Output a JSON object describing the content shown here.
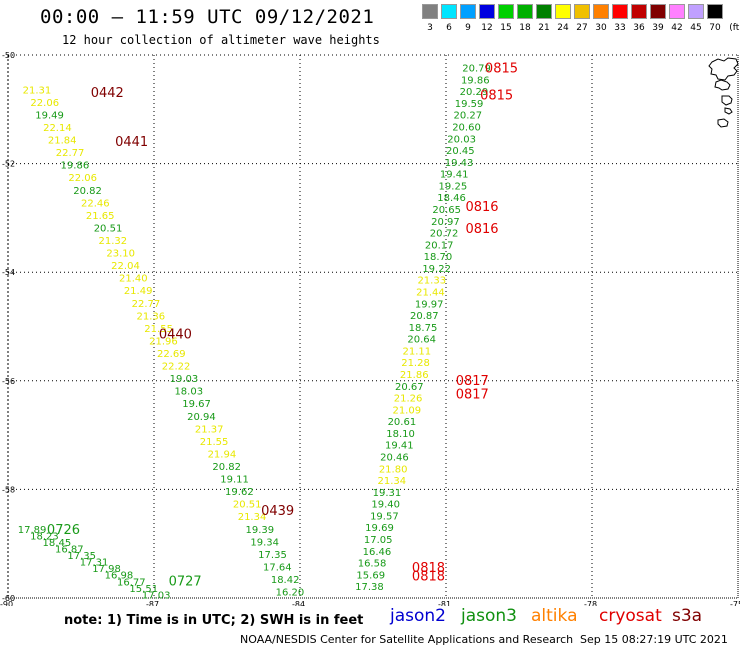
{
  "header": {
    "title": "00:00 – 11:59 UTC 09/12/2021",
    "subtitle": "12 hour collection of altimeter wave heights"
  },
  "color_scale": {
    "unit": "(ft)",
    "swatches": [
      {
        "label": "3",
        "color": "#808080"
      },
      {
        "label": "6",
        "color": "#00e5ff"
      },
      {
        "label": "9",
        "color": "#00a0ff"
      },
      {
        "label": "12",
        "color": "#0000e0"
      },
      {
        "label": "15",
        "color": "#00d000"
      },
      {
        "label": "18",
        "color": "#00b000"
      },
      {
        "label": "21",
        "color": "#008000"
      },
      {
        "label": "24",
        "color": "#ffff00"
      },
      {
        "label": "27",
        "color": "#f0c000"
      },
      {
        "label": "30",
        "color": "#ff8000"
      },
      {
        "label": "33",
        "color": "#ff0000"
      },
      {
        "label": "36",
        "color": "#c00000"
      },
      {
        "label": "39",
        "color": "#800000"
      },
      {
        "label": "42",
        "color": "#ff80ff"
      },
      {
        "label": "45",
        "color": "#c0a0ff"
      },
      {
        "label": "70",
        "color": "#000000"
      }
    ]
  },
  "axes": {
    "lat_ticks": [
      "-50",
      "-52",
      "-54",
      "-56",
      "-58",
      "-60"
    ],
    "lon_ticks": [
      "-90",
      "-87",
      "-84",
      "-81",
      "-78",
      "-75"
    ]
  },
  "colors": {
    "green": "#189a18",
    "yellow": "#e8e800",
    "red": "#e00000",
    "darkred": "#800000"
  },
  "time_labels": [
    {
      "t": "0442",
      "color": "darkred",
      "lon": -88.3,
      "lat": -50.7
    },
    {
      "t": "0441",
      "color": "darkred",
      "lon": -87.8,
      "lat": -51.6
    },
    {
      "t": "0440",
      "color": "darkred",
      "lon": -86.9,
      "lat": -55.15
    },
    {
      "t": "0439",
      "color": "darkred",
      "lon": -84.8,
      "lat": -58.4
    },
    {
      "t": "0726",
      "color": "green",
      "lon": -89.2,
      "lat": -58.75
    },
    {
      "t": "0727",
      "color": "green",
      "lon": -86.7,
      "lat": -59.7
    },
    {
      "t": "0815",
      "color": "red",
      "lon": -80.2,
      "lat": -50.25
    },
    {
      "t": "0815",
      "color": "red",
      "lon": -80.3,
      "lat": -50.75
    },
    {
      "t": "0816",
      "color": "red",
      "lon": -80.6,
      "lat": -52.8
    },
    {
      "t": "0816",
      "color": "red",
      "lon": -80.6,
      "lat": -53.2
    },
    {
      "t": "0817",
      "color": "red",
      "lon": -80.8,
      "lat": -56.0
    },
    {
      "t": "0817",
      "color": "red",
      "lon": -80.8,
      "lat": -56.25
    },
    {
      "t": "0818",
      "color": "red",
      "lon": -81.7,
      "lat": -59.45
    },
    {
      "t": "0818",
      "color": "red",
      "lon": -81.7,
      "lat": -59.6
    }
  ],
  "track_west": [
    {
      "v": "21.31",
      "c": "yellow"
    },
    {
      "v": "22.06",
      "c": "yellow"
    },
    {
      "v": "19.49",
      "c": "green"
    },
    {
      "v": "22.14",
      "c": "yellow"
    },
    {
      "v": "21.84",
      "c": "yellow"
    },
    {
      "v": "22.77",
      "c": "yellow"
    },
    {
      "v": "19.86",
      "c": "green"
    },
    {
      "v": "22.06",
      "c": "yellow"
    },
    {
      "v": "20.82",
      "c": "green"
    },
    {
      "v": "22.46",
      "c": "yellow"
    },
    {
      "v": "21.65",
      "c": "yellow"
    },
    {
      "v": "20.51",
      "c": "green"
    },
    {
      "v": "21.32",
      "c": "yellow"
    },
    {
      "v": "23.10",
      "c": "yellow"
    },
    {
      "v": "22.04",
      "c": "yellow"
    },
    {
      "v": "21.40",
      "c": "yellow"
    },
    {
      "v": "21.49",
      "c": "yellow"
    },
    {
      "v": "22.77",
      "c": "yellow"
    },
    {
      "v": "21.36",
      "c": "yellow"
    },
    {
      "v": "21.55",
      "c": "yellow"
    },
    {
      "v": "21.96",
      "c": "yellow"
    },
    {
      "v": "22.69",
      "c": "yellow"
    },
    {
      "v": "22.22",
      "c": "yellow"
    },
    {
      "v": "19.03",
      "c": "green"
    },
    {
      "v": "18.03",
      "c": "green"
    },
    {
      "v": "19.67",
      "c": "green"
    },
    {
      "v": "20.94",
      "c": "green"
    },
    {
      "v": "21.37",
      "c": "yellow"
    },
    {
      "v": "21.55",
      "c": "yellow"
    },
    {
      "v": "21.94",
      "c": "yellow"
    },
    {
      "v": "20.82",
      "c": "green"
    },
    {
      "v": "19.11",
      "c": "green"
    },
    {
      "v": "19.62",
      "c": "green"
    },
    {
      "v": "20.51",
      "c": "yellow"
    },
    {
      "v": "21.34",
      "c": "yellow"
    },
    {
      "v": "19.39",
      "c": "green"
    },
    {
      "v": "19.34",
      "c": "green"
    },
    {
      "v": "17.35",
      "c": "green"
    },
    {
      "v": "17.64",
      "c": "green"
    },
    {
      "v": "18.42",
      "c": "green"
    },
    {
      "v": "16.20",
      "c": "green"
    }
  ],
  "track_southwest": [
    {
      "v": "17.89",
      "c": "green"
    },
    {
      "v": "18.23",
      "c": "green"
    },
    {
      "v": "18.45",
      "c": "green"
    },
    {
      "v": "16.87",
      "c": "green"
    },
    {
      "v": "17.35",
      "c": "green"
    },
    {
      "v": "17.31",
      "c": "green"
    },
    {
      "v": "17.98",
      "c": "green"
    },
    {
      "v": "16.98",
      "c": "green"
    },
    {
      "v": "16.77",
      "c": "green"
    },
    {
      "v": "15.51",
      "c": "green"
    },
    {
      "v": "17.03",
      "c": "green"
    }
  ],
  "track_east": [
    {
      "v": "20.79",
      "c": "green"
    },
    {
      "v": "19.86",
      "c": "green"
    },
    {
      "v": "20.29",
      "c": "green"
    },
    {
      "v": "19.59",
      "c": "green"
    },
    {
      "v": "20.27",
      "c": "green"
    },
    {
      "v": "20.60",
      "c": "green"
    },
    {
      "v": "20.03",
      "c": "green"
    },
    {
      "v": "20.45",
      "c": "green"
    },
    {
      "v": "19.43",
      "c": "green"
    },
    {
      "v": "19.41",
      "c": "green"
    },
    {
      "v": "19.25",
      "c": "green"
    },
    {
      "v": "18.46",
      "c": "green"
    },
    {
      "v": "20.65",
      "c": "green"
    },
    {
      "v": "20.97",
      "c": "green"
    },
    {
      "v": "20.72",
      "c": "green"
    },
    {
      "v": "20.17",
      "c": "green"
    },
    {
      "v": "18.70",
      "c": "green"
    },
    {
      "v": "19.22",
      "c": "green"
    },
    {
      "v": "21.33",
      "c": "yellow"
    },
    {
      "v": "21.44",
      "c": "yellow"
    },
    {
      "v": "19.97",
      "c": "green"
    },
    {
      "v": "20.87",
      "c": "green"
    },
    {
      "v": "18.75",
      "c": "green"
    },
    {
      "v": "20.64",
      "c": "green"
    },
    {
      "v": "21.11",
      "c": "yellow"
    },
    {
      "v": "21.28",
      "c": "yellow"
    },
    {
      "v": "21.86",
      "c": "yellow"
    },
    {
      "v": "20.67",
      "c": "green"
    },
    {
      "v": "21.26",
      "c": "yellow"
    },
    {
      "v": "21.09",
      "c": "yellow"
    },
    {
      "v": "20.61",
      "c": "green"
    },
    {
      "v": "18.10",
      "c": "green"
    },
    {
      "v": "19.41",
      "c": "green"
    },
    {
      "v": "20.46",
      "c": "green"
    },
    {
      "v": "21.80",
      "c": "yellow"
    },
    {
      "v": "21.34",
      "c": "yellow"
    },
    {
      "v": "19.31",
      "c": "green"
    },
    {
      "v": "19.40",
      "c": "green"
    },
    {
      "v": "19.57",
      "c": "green"
    },
    {
      "v": "19.69",
      "c": "green"
    },
    {
      "v": "17.05",
      "c": "green"
    },
    {
      "v": "16.46",
      "c": "green"
    },
    {
      "v": "16.58",
      "c": "green"
    },
    {
      "v": "15.69",
      "c": "green"
    },
    {
      "v": "17.38",
      "c": "green"
    }
  ],
  "legend": {
    "note": "note: 1) Time is in UTC; 2) SWH is in feet",
    "satellites": [
      {
        "name": "jason2",
        "color": "#0000d0"
      },
      {
        "name": "jason3",
        "color": "#109010"
      },
      {
        "name": "altika",
        "color": "#ff8000"
      },
      {
        "name": "cryosat",
        "color": "#e00000"
      },
      {
        "name": "s3a",
        "color": "#800000"
      }
    ],
    "credit": "NOAA/NESDIS Center for Satellite Applications and Research",
    "stamp": "Sep 15 08:27:19 UTC 2021"
  }
}
